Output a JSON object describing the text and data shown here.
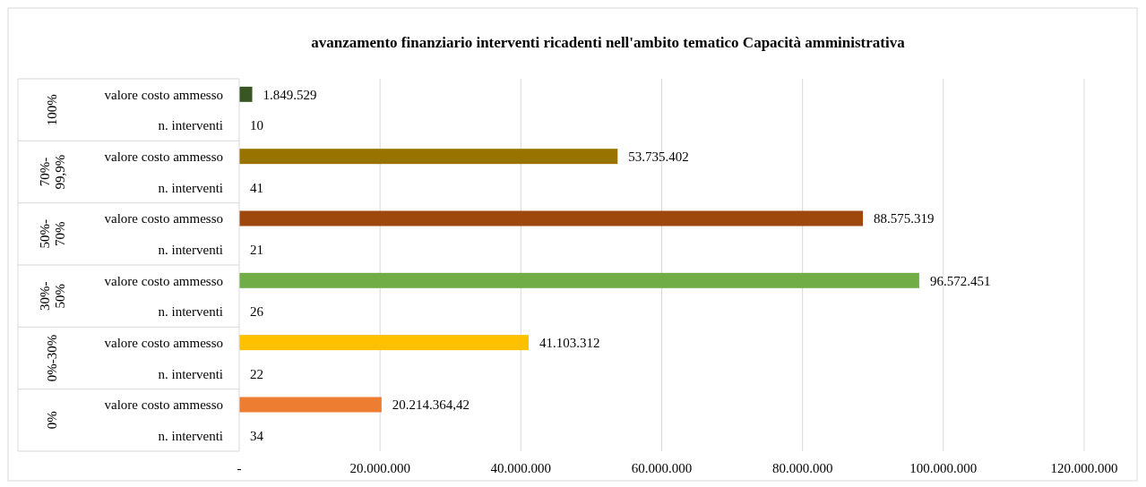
{
  "chart_data": {
    "type": "bar",
    "orientation": "horizontal",
    "title": "avanzamento finanziario interventi ricadenti nell'ambito tematico Capacità amministrativa",
    "categories": [
      "valore costo ammesso",
      "n. interventi",
      "valore costo ammesso",
      "n. interventi",
      "valore costo ammesso",
      "n. interventi",
      "valore costo ammesso",
      "n. interventi",
      "valore costo ammesso",
      "n. interventi",
      "valore costo ammesso",
      "n. interventi"
    ],
    "values": [
      1849529,
      10,
      53735402,
      41,
      88575319,
      21,
      96572451,
      26,
      41103312,
      22,
      20214364.42,
      34
    ],
    "value_labels": [
      "1.849.529",
      "10",
      "53.735.402",
      "41",
      "88.575.319",
      "21",
      "96.572.451",
      "26",
      "41.103.312",
      "22",
      "20.214.364,42",
      "34"
    ],
    "colors": [
      "#375623",
      "#375623",
      "#997300",
      "#997300",
      "#9e480e",
      "#9e480e",
      "#70ad47",
      "#70ad47",
      "#ffc000",
      "#ffc000",
      "#ed7d31",
      "#ed7d31"
    ],
    "annotations": [
      "100%",
      "70%-99,9%",
      "50%-70%",
      "30%-50%",
      "0%-30%",
      "0%"
    ],
    "xlim": [
      0,
      120000000
    ],
    "xticks": [
      {
        "value": 0,
        "label": "-"
      },
      {
        "value": 20000000,
        "label": "20.000.000"
      },
      {
        "value": 40000000,
        "label": "40.000.000"
      },
      {
        "value": 60000000,
        "label": "60.000.000"
      },
      {
        "value": 80000000,
        "label": "80.000.000"
      },
      {
        "value": 100000000,
        "label": "100.000.000"
      },
      {
        "value": 120000000,
        "label": "120.000.000"
      }
    ],
    "grid": "x"
  }
}
